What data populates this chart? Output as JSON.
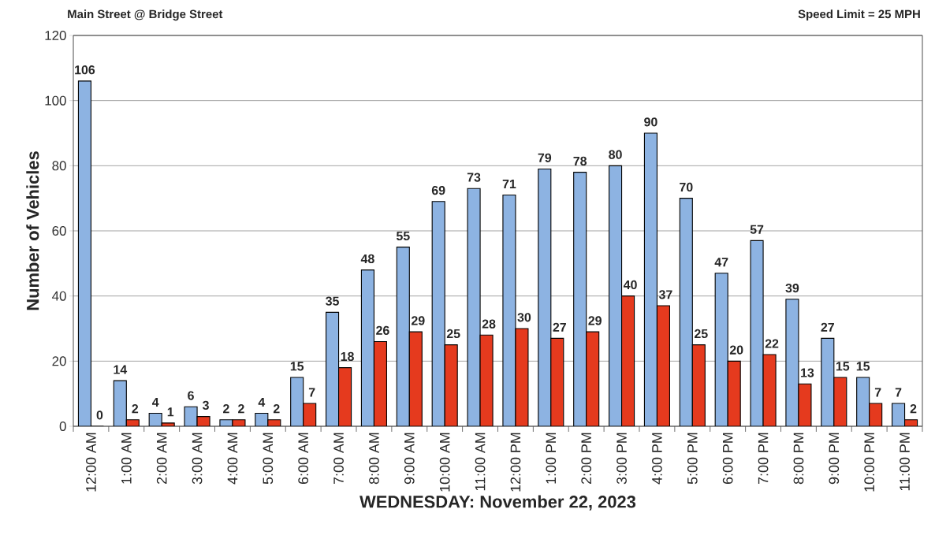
{
  "chart_data": {
    "type": "bar",
    "title": "Main Street @ Bridge Street",
    "subtitle": "Speed Limit = 25 MPH",
    "xlabel": "WEDNESDAY: November 22, 2023",
    "ylabel": "Number of Vehicles",
    "categories": [
      "12:00 AM",
      "1:00 AM",
      "2:00 AM",
      "3:00 AM",
      "4:00 AM",
      "5:00 AM",
      "6:00 AM",
      "7:00 AM",
      "8:00 AM",
      "9:00 AM",
      "10:00 AM",
      "11:00 AM",
      "12:00 PM",
      "1:00 PM",
      "2:00 PM",
      "3:00 PM",
      "4:00 PM",
      "5:00 PM",
      "6:00 PM",
      "7:00 PM",
      "8:00 PM",
      "9:00 PM",
      "10:00 PM",
      "11:00 PM"
    ],
    "series": [
      {
        "color": "#8db3e2",
        "values": [
          106,
          14,
          4,
          6,
          2,
          4,
          15,
          35,
          48,
          55,
          69,
          73,
          71,
          79,
          78,
          80,
          90,
          70,
          47,
          57,
          39,
          27,
          15,
          7
        ]
      },
      {
        "color": "#e53a1e",
        "values": [
          0,
          2,
          1,
          3,
          2,
          2,
          7,
          18,
          26,
          29,
          25,
          28,
          30,
          27,
          29,
          40,
          37,
          25,
          20,
          22,
          13,
          15,
          7,
          2
        ]
      }
    ],
    "ylim": [
      0,
      120
    ],
    "yticks": [
      0,
      20,
      40,
      60,
      80,
      100,
      120
    ],
    "grid": "y",
    "data_labels": true
  }
}
